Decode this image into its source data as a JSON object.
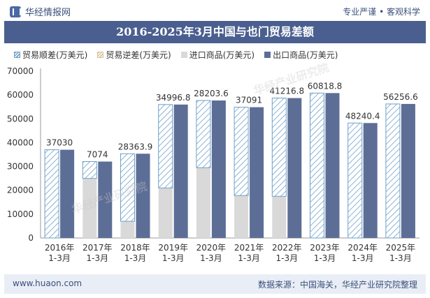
{
  "header": {
    "brand": "华经情报网",
    "tags": "专业严谨 • 客观科学"
  },
  "footer": {
    "site": "www.huaon.com",
    "source": "数据来源：中国海关，华经产业研究院整理"
  },
  "watermark": "华经产业研究院",
  "colors": {
    "title_bg": "#4a5f8f",
    "export": "#5d6e96",
    "import": "#d9d9d9",
    "surplus_hatch": "#6ea0c8",
    "deficit_hatch": "#d9c39a"
  },
  "chart_data": {
    "type": "bar",
    "title": "2016-2025年3月中国与也门贸易差额",
    "legend": [
      "贸易顺差(万美元)",
      "贸易逆差(万美元)",
      "进口商品(万美元)",
      "出口商品(万美元)"
    ],
    "categories": [
      "2016年\n1-3月",
      "2017年\n1-3月",
      "2018年\n1-3月",
      "2019年\n1-3月",
      "2020年\n1-3月",
      "2021年\n1-3月",
      "2022年\n1-3月",
      "2023年\n1-3月",
      "2024年\n1-3月",
      "2025年\n1-3月"
    ],
    "series": [
      {
        "name": "贸易顺差(万美元)",
        "values": [
          37030,
          7074,
          28363.9,
          34996.8,
          28203.6,
          37091,
          41216.8,
          60818.8,
          48240.4,
          56256.6
        ]
      },
      {
        "name": "进口商品(万美元)",
        "values": [
          0,
          25000,
          7000,
          21000,
          29500,
          17800,
          17500,
          0,
          0,
          0
        ]
      },
      {
        "name": "出口商品(万美元)",
        "values": [
          37030,
          32074,
          35363.9,
          55996.8,
          57703.6,
          54891,
          58716.8,
          60818.8,
          48240.4,
          56256.6
        ]
      }
    ],
    "data_labels": [
      "37030",
      "7074",
      "28363.9",
      "34996.8",
      "28203.6",
      "37091",
      "41216.8",
      "60818.8",
      "48240.4",
      "56256.6"
    ],
    "y_ticks": [
      "0",
      "10000",
      "20000",
      "30000",
      "40000",
      "50000",
      "60000",
      "70000"
    ],
    "ylim": [
      0,
      70000
    ],
    "xlabel": "",
    "ylabel": ""
  }
}
